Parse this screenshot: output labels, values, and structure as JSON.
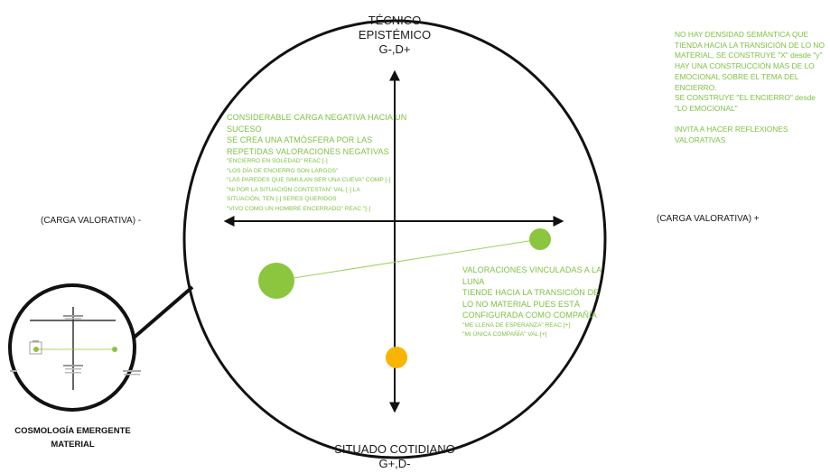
{
  "axes": {
    "top": [
      "TÉCNICO",
      "EPISTÉMICO",
      "G-,D+"
    ],
    "bottom": [
      "SITUADO COTIDIANO",
      "G+,D-"
    ],
    "left": "(CARGA VALORATIVA) -",
    "right": "(CARGA VALORATIVA) +"
  },
  "upper_left_note": {
    "main": [
      "CONSIDERABLE CARGA NEGATIVA HACIA UN",
      "SUCESO",
      "SE CREA UNA ATMÓSFERA POR LAS",
      "REPETIDAS VALORACIONES NEGATIVAS"
    ],
    "quotes": [
      "\"ENCIERRO EN SOLEDAD\" REAC [-]",
      "\"LOS DÍA DE ENCIERRO SON LARGOS\"",
      "\"LAS PAREDES QUE SIMULAN SER UNA CUEVA\" COMP [-]",
      "\"NI POR LA SITUACIÓN CONTESTAN\" VAL [-] LA",
      "SITUACIÓN, TEN [-] SERES QUERIDOS",
      "\"VIVO COMO UN HOMBRE ENCERRADO\" REAC \"[-]"
    ]
  },
  "lower_right_note": {
    "main": [
      "VALORACIONES VINCULADAS A LA",
      "LUNA",
      "TIENDE HACIA LA TRANSICIÓN DE",
      "LO NO MATERIAL PUES ESTÁ",
      "CONFIGURADA COMO COMPAÑÍA"
    ],
    "quotes": [
      "\"ME LLENA DE ESPERANZA\" REAC [+]",
      "\"MI ÚNICA COMPAÑÍA\" VAL [+]"
    ]
  },
  "top_right_note": [
    "NO HAY DENSIDAD SEMÁNTICA QUE",
    "TIENDA HACIA LA TRANSICIÓN DE LO NO",
    "MATERIAL, SE CONSTRUYE \"X\" desde \"y\"",
    "HAY UNA CONSTRUCCIÓN MÁS DE LO",
    "EMOCIONAL SOBRE EL TEMA DEL",
    "ENCIERRO.",
    "SE CONSTRUYE \"EL ENCIERRO\" desde",
    "\"LO EMOCIONAL\"",
    "",
    "INVITA A HACER REFLEXIONES",
    "VALORATIVAS"
  ],
  "caption": [
    "COSMOLOGÍA EMERGENTE",
    "MATERIAL"
  ],
  "colors": {
    "green_text": "#7dc242",
    "green_dot": "#8cc63f",
    "orange_dot": "#f7b500",
    "outline": "#111111"
  }
}
